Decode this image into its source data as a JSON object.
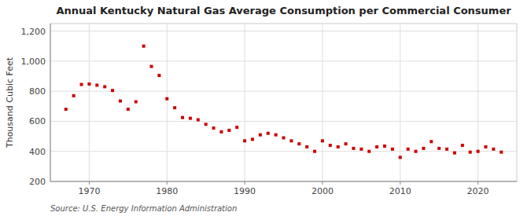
{
  "chart_data": {
    "type": "scatter",
    "title": "Annual Kentucky Natural Gas Average Consumption per Commercial Consumer",
    "ylabel": "Thousand Cubic Feet",
    "annotations": [
      "Source: U.S. Energy Information Administration"
    ],
    "x": [
      1967,
      1968,
      1969,
      1970,
      1971,
      1972,
      1973,
      1974,
      1975,
      1976,
      1977,
      1978,
      1979,
      1980,
      1981,
      1982,
      1983,
      1984,
      1985,
      1986,
      1987,
      1988,
      1989,
      1990,
      1991,
      1992,
      1993,
      1994,
      1995,
      1996,
      1997,
      1998,
      1999,
      2000,
      2001,
      2002,
      2003,
      2004,
      2005,
      2006,
      2007,
      2008,
      2009,
      2010,
      2011,
      2012,
      2013,
      2014,
      2015,
      2016,
      2017,
      2018,
      2019,
      2020,
      2021,
      2022,
      2023
    ],
    "values": [
      680,
      770,
      845,
      848,
      840,
      830,
      805,
      735,
      680,
      730,
      1100,
      965,
      905,
      750,
      690,
      625,
      620,
      610,
      580,
      555,
      530,
      540,
      560,
      470,
      480,
      510,
      520,
      510,
      490,
      470,
      450,
      430,
      400,
      470,
      440,
      430,
      450,
      420,
      415,
      400,
      430,
      435,
      415,
      360,
      415,
      400,
      420,
      465,
      420,
      415,
      390,
      440,
      395,
      400,
      430,
      415,
      395
    ],
    "color": "#cc0000",
    "marker": "square",
    "xlim": [
      1965,
      2025
    ],
    "ylim": [
      200,
      1250
    ],
    "xticks": [
      1970,
      1980,
      1990,
      2000,
      2010,
      2020
    ],
    "yticks": [
      200,
      400,
      600,
      800,
      {
        "value": 1000,
        "label": "1,000"
      },
      {
        "value": 1200,
        "label": "1,200"
      }
    ],
    "grid": true
  }
}
